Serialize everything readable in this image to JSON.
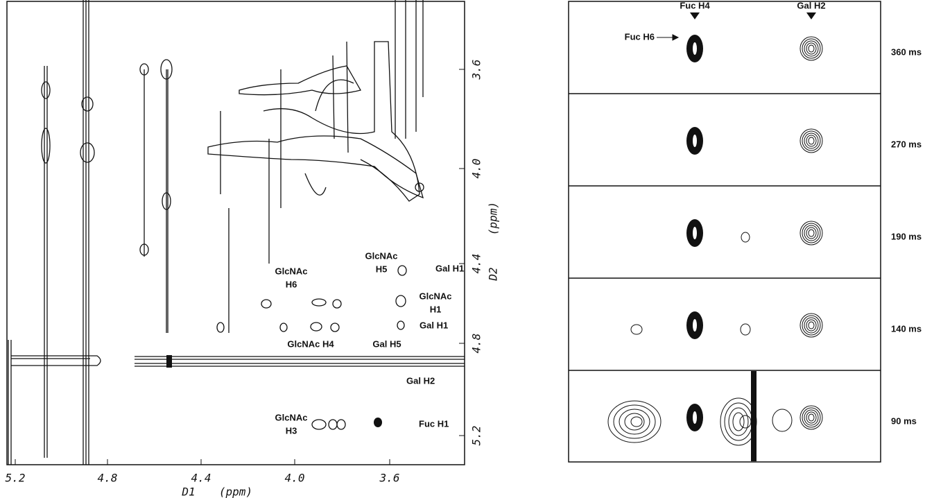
{
  "left_panel": {
    "x_axis": {
      "label": "D1",
      "unit": "(ppm)",
      "ticks": [
        "5.2",
        "4.8",
        "4.4",
        "4.0",
        "3.6"
      ]
    },
    "y_axis": {
      "label": "D2",
      "unit": "(ppm)",
      "ticks": [
        "3.6",
        "4.0",
        "4.4",
        "4.8",
        "5.2"
      ]
    },
    "annotations": [
      [
        "Gal H1"
      ],
      [
        "GlcNAc",
        "H6"
      ],
      [
        "GlcNAc",
        "H5"
      ],
      [
        "GlcNAc",
        "H1"
      ],
      [
        "Gal H1"
      ],
      [
        "GlcNAc H4"
      ],
      [
        "Gal H5"
      ],
      [
        "Gal H2"
      ],
      [
        "GlcNAc",
        "H3"
      ],
      [
        "Fuc H1"
      ]
    ]
  },
  "right_panel": {
    "peak_labels": [
      "Fuc H4",
      "Gal H2",
      "Fuc H6"
    ],
    "mixing_times": [
      "360 ms",
      "270 ms",
      "190 ms",
      "140 ms",
      "90 ms"
    ]
  }
}
